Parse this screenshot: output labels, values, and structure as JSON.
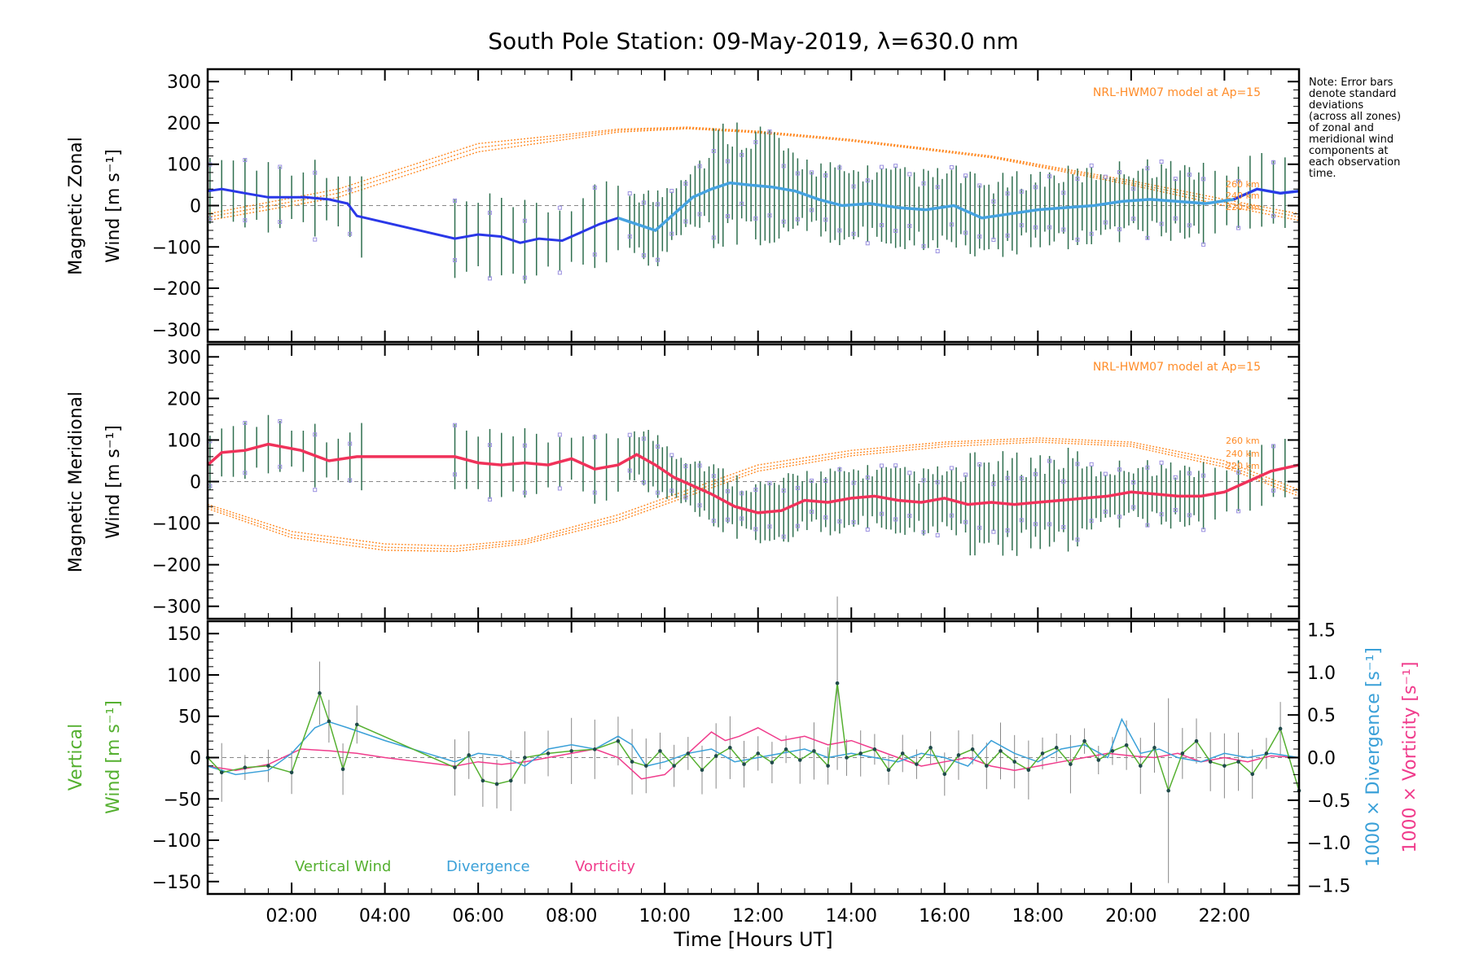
{
  "colors": {
    "axis": "#000000",
    "zonal_line": "#2a38e8",
    "zonal_smooth": "#45a2e0",
    "meridional_line": "#f0325a",
    "errorbar": "#2f6f4f",
    "model": "#ff8c28",
    "scatter": "#9a90e0",
    "vertical": "#55b030",
    "divergence": "#3aa0d8",
    "vorticity": "#f03c8c",
    "grey": "#888888"
  },
  "chart_data": [
    {
      "type": "line",
      "panel": "zonal",
      "title": "South Pole Station: 09-May-2019, λ=630.0 nm",
      "ylabel_line1": "Magnetic Zonal",
      "ylabel_line2": "Wind [m s⁻¹]",
      "ylim": [
        -330,
        330
      ],
      "yticks": [
        300,
        200,
        100,
        0,
        -100,
        -200,
        -300
      ],
      "ytick_labels": [
        "300",
        "200",
        "100",
        "0",
        "−100",
        "−200",
        "−300"
      ],
      "model_label": "NRL-HWM07 model at Ap=15",
      "model_heights": [
        "260 km",
        "240 km",
        "220 km"
      ],
      "model": [
        {
          "name": "260 km",
          "x": [
            0.2,
            3,
            6,
            9,
            10.5,
            12,
            14,
            17,
            20,
            22,
            23.6
          ],
          "y": [
            -20,
            40,
            150,
            185,
            190,
            180,
            160,
            120,
            60,
            15,
            -20
          ]
        },
        {
          "name": "240 km",
          "x": [
            0.2,
            3,
            6,
            9,
            10.5,
            12,
            14,
            17,
            20,
            22,
            23.6
          ],
          "y": [
            -28,
            30,
            140,
            182,
            188,
            178,
            158,
            118,
            55,
            8,
            -28
          ]
        },
        {
          "name": "220 km",
          "x": [
            0.2,
            3,
            6,
            9,
            10.5,
            12,
            14,
            17,
            20,
            22,
            23.6
          ],
          "y": [
            -36,
            20,
            130,
            178,
            186,
            176,
            156,
            116,
            50,
            0,
            -36
          ]
        }
      ],
      "series": [
        {
          "name": "Zonal wind",
          "x": [
            0.2,
            0.5,
            1.0,
            1.5,
            2.3,
            2.8,
            3.2,
            3.4,
            5.5,
            6.0,
            6.5,
            6.9,
            7.3,
            7.8,
            8.2,
            8.6,
            9.0,
            9.4,
            9.8,
            10.2,
            10.6,
            11.0,
            11.4,
            11.8,
            12.3,
            12.8,
            13.3,
            13.8,
            14.4,
            15.0,
            15.6,
            16.2,
            16.8,
            17.4,
            18.0,
            18.6,
            19.2,
            19.8,
            20.4,
            21.0,
            21.6,
            22.2,
            22.7,
            23.2,
            23.6
          ],
          "y": [
            35,
            40,
            30,
            20,
            20,
            15,
            5,
            -25,
            -80,
            -70,
            -75,
            -90,
            -80,
            -85,
            -65,
            -45,
            -30,
            -45,
            -60,
            -20,
            20,
            40,
            55,
            50,
            45,
            35,
            15,
            0,
            5,
            -5,
            -10,
            0,
            -30,
            -20,
            -10,
            -5,
            0,
            10,
            15,
            10,
            5,
            15,
            40,
            30,
            35
          ]
        }
      ],
      "errorbar_half_range": 85
    },
    {
      "type": "line",
      "panel": "meridional",
      "ylabel_line1": "Magnetic Meridional",
      "ylabel_line2": "Wind [m s⁻¹]",
      "ylim": [
        -330,
        330
      ],
      "yticks": [
        300,
        200,
        100,
        0,
        -100,
        -200,
        -300
      ],
      "ytick_labels": [
        "300",
        "200",
        "100",
        "0",
        "−100",
        "−200",
        "−300"
      ],
      "model_label": "NRL-HWM07 model at Ap=15",
      "model_heights": [
        "260 km",
        "240 km",
        "220 km"
      ],
      "model": [
        {
          "name": "260 km",
          "x": [
            0.2,
            2,
            4,
            5.5,
            7,
            9,
            10.5,
            12,
            14,
            16,
            18,
            20,
            22,
            23.6
          ],
          "y": [
            -55,
            -120,
            -150,
            -155,
            -140,
            -80,
            -20,
            40,
            75,
            95,
            105,
            95,
            50,
            -20
          ]
        },
        {
          "name": "240 km",
          "x": [
            0.2,
            2,
            4,
            5.5,
            7,
            9,
            10.5,
            12,
            14,
            16,
            18,
            20,
            22,
            23.6
          ],
          "y": [
            -60,
            -128,
            -158,
            -162,
            -145,
            -88,
            -28,
            32,
            68,
            90,
            100,
            90,
            42,
            -28
          ]
        },
        {
          "name": "220 km",
          "x": [
            0.2,
            2,
            4,
            5.5,
            7,
            9,
            10.5,
            12,
            14,
            16,
            18,
            20,
            22,
            23.6
          ],
          "y": [
            -65,
            -135,
            -165,
            -168,
            -150,
            -95,
            -35,
            25,
            62,
            84,
            95,
            85,
            35,
            -35
          ]
        }
      ],
      "series": [
        {
          "name": "Meridional wind",
          "x": [
            0.2,
            0.5,
            1.0,
            1.5,
            2.2,
            2.8,
            3.4,
            5.5,
            6.0,
            6.5,
            7.0,
            7.5,
            8.0,
            8.5,
            9.0,
            9.4,
            9.8,
            10.2,
            10.6,
            11.0,
            11.5,
            12.0,
            12.5,
            13.0,
            13.5,
            14.0,
            14.5,
            15.0,
            15.5,
            16.0,
            16.5,
            17.0,
            17.5,
            18.0,
            18.5,
            19.0,
            19.5,
            20.0,
            20.5,
            21.0,
            21.5,
            22.0,
            22.5,
            23.0,
            23.6
          ],
          "y": [
            40,
            70,
            75,
            90,
            75,
            50,
            60,
            60,
            45,
            40,
            45,
            40,
            55,
            30,
            40,
            65,
            40,
            10,
            -10,
            -30,
            -60,
            -75,
            -70,
            -45,
            -50,
            -40,
            -35,
            -45,
            -50,
            -40,
            -55,
            -50,
            -55,
            -50,
            -45,
            -40,
            -35,
            -25,
            -30,
            -35,
            -35,
            -25,
            0,
            25,
            40
          ]
        }
      ],
      "errorbar_half_range": 70
    },
    {
      "type": "line",
      "panel": "vertical",
      "xlabel": "Time [Hours UT]",
      "xlim": [
        0.2,
        23.6
      ],
      "xticks": [
        2,
        4,
        6,
        8,
        10,
        12,
        14,
        16,
        18,
        20,
        22
      ],
      "xtick_labels": [
        "02:00",
        "04:00",
        "06:00",
        "08:00",
        "10:00",
        "12:00",
        "14:00",
        "16:00",
        "18:00",
        "20:00",
        "22:00"
      ],
      "ylabel_line1": "Vertical",
      "ylabel_line2": "Wind [m s⁻¹]",
      "ylim": [
        -165,
        165
      ],
      "yticks": [
        150,
        100,
        50,
        0,
        -50,
        -100,
        -150
      ],
      "ytick_labels": [
        "150",
        "100",
        "50",
        "0",
        "−50",
        "−100",
        "−150"
      ],
      "y2lim": [
        -1.6,
        1.6
      ],
      "y2ticks": [
        1.5,
        1.0,
        0.5,
        0.0,
        -0.5,
        -1.0,
        -1.5
      ],
      "y2tick_labels": [
        "1.5",
        "1.0",
        "0.5",
        "0.0",
        "−0.5",
        "−1.0",
        "−1.5"
      ],
      "y2label_a": "1000 × Divergence [s⁻¹]",
      "y2label_b": "1000 × Vorticity [s⁻¹]",
      "legend": [
        "Vertical Wind",
        "Divergence",
        "Vorticity"
      ],
      "series": [
        {
          "name": "Vertical Wind",
          "x": [
            0.2,
            0.5,
            1.0,
            1.5,
            2.0,
            2.6,
            2.8,
            3.1,
            3.4,
            5.5,
            5.8,
            6.1,
            6.4,
            6.7,
            7.0,
            7.5,
            8.0,
            8.5,
            9.0,
            9.3,
            9.6,
            9.9,
            10.2,
            10.5,
            10.8,
            11.1,
            11.4,
            11.7,
            12.0,
            12.3,
            12.6,
            12.9,
            13.2,
            13.5,
            13.7,
            13.9,
            14.2,
            14.5,
            14.8,
            15.1,
            15.4,
            15.7,
            16.0,
            16.3,
            16.6,
            16.9,
            17.2,
            17.5,
            17.8,
            18.1,
            18.4,
            18.7,
            19.0,
            19.3,
            19.6,
            19.9,
            20.2,
            20.5,
            20.8,
            21.1,
            21.4,
            21.7,
            22.0,
            22.3,
            22.6,
            22.9,
            23.2,
            23.6
          ],
          "y": [
            0,
            -18,
            -12,
            -10,
            -18,
            78,
            44,
            -14,
            40,
            -12,
            3,
            -28,
            -32,
            -28,
            0,
            5,
            8,
            10,
            20,
            -5,
            -10,
            8,
            -10,
            5,
            -15,
            2,
            12,
            -8,
            5,
            -6,
            10,
            -3,
            8,
            -10,
            90,
            0,
            5,
            10,
            -15,
            5,
            -8,
            12,
            -20,
            3,
            10,
            -10,
            8,
            -5,
            -15,
            5,
            12,
            -8,
            20,
            -3,
            8,
            15,
            -10,
            12,
            -40,
            5,
            20,
            -5,
            -10,
            -5,
            -20,
            5,
            35,
            -40
          ]
        },
        {
          "name": "Divergence",
          "axis": "y2",
          "x": [
            0.2,
            0.8,
            1.5,
            2.0,
            2.5,
            2.8,
            3.2,
            4.0,
            5.5,
            6.0,
            6.5,
            7.0,
            7.5,
            8.0,
            8.5,
            9.0,
            9.3,
            9.6,
            10.0,
            10.5,
            11.0,
            11.5,
            12.0,
            12.5,
            13.0,
            13.5,
            14.0,
            14.5,
            15.0,
            15.5,
            16.0,
            16.5,
            17.0,
            17.5,
            18.0,
            18.5,
            19.0,
            19.5,
            19.8,
            20.2,
            20.6,
            21.0,
            21.5,
            22.0,
            22.5,
            23.0,
            23.6
          ],
          "y": [
            -0.1,
            -0.2,
            -0.15,
            0.05,
            0.35,
            0.42,
            0.35,
            0.2,
            -0.05,
            0.05,
            0.02,
            -0.1,
            0.1,
            0.15,
            0.1,
            0.25,
            0.15,
            -0.1,
            -0.05,
            0.05,
            0.1,
            -0.05,
            0.0,
            0.05,
            0.1,
            0.0,
            0.05,
            0.0,
            -0.05,
            0.05,
            0.0,
            -0.1,
            0.2,
            0.05,
            -0.05,
            0.1,
            0.15,
            0.0,
            0.45,
            0.05,
            0.1,
            0.0,
            -0.05,
            0.05,
            0.0,
            0.05,
            0.0
          ]
        },
        {
          "name": "Vorticity",
          "axis": "y2",
          "x": [
            0.2,
            0.8,
            1.5,
            2.2,
            2.8,
            3.4,
            4.0,
            5.5,
            6.0,
            6.5,
            7.0,
            7.5,
            8.0,
            8.5,
            9.0,
            9.5,
            10.0,
            10.5,
            11.0,
            11.3,
            11.6,
            12.0,
            12.5,
            13.0,
            13.5,
            14.0,
            14.5,
            15.0,
            15.5,
            16.0,
            16.5,
            17.0,
            17.5,
            18.0,
            18.5,
            19.0,
            19.5,
            20.0,
            20.5,
            21.0,
            21.5,
            22.0,
            22.5,
            23.0,
            23.6
          ],
          "y": [
            -0.1,
            -0.15,
            -0.08,
            0.1,
            0.08,
            0.05,
            0.0,
            -0.1,
            -0.05,
            -0.08,
            -0.05,
            0.0,
            0.05,
            0.1,
            0.0,
            -0.25,
            -0.2,
            0.05,
            0.3,
            0.2,
            0.25,
            0.35,
            0.2,
            0.25,
            0.15,
            0.2,
            0.1,
            0.0,
            -0.1,
            -0.05,
            0.0,
            -0.1,
            -0.15,
            -0.1,
            -0.05,
            0.0,
            0.05,
            0.02,
            0.0,
            0.05,
            -0.05,
            0.0,
            -0.05,
            0.02,
            0.0
          ]
        }
      ]
    }
  ],
  "note": [
    "Note: Error bars",
    "denote standard",
    "deviations",
    "(across all zones)",
    "of zonal and",
    "meridional wind",
    "components at",
    "each observation",
    "time."
  ]
}
